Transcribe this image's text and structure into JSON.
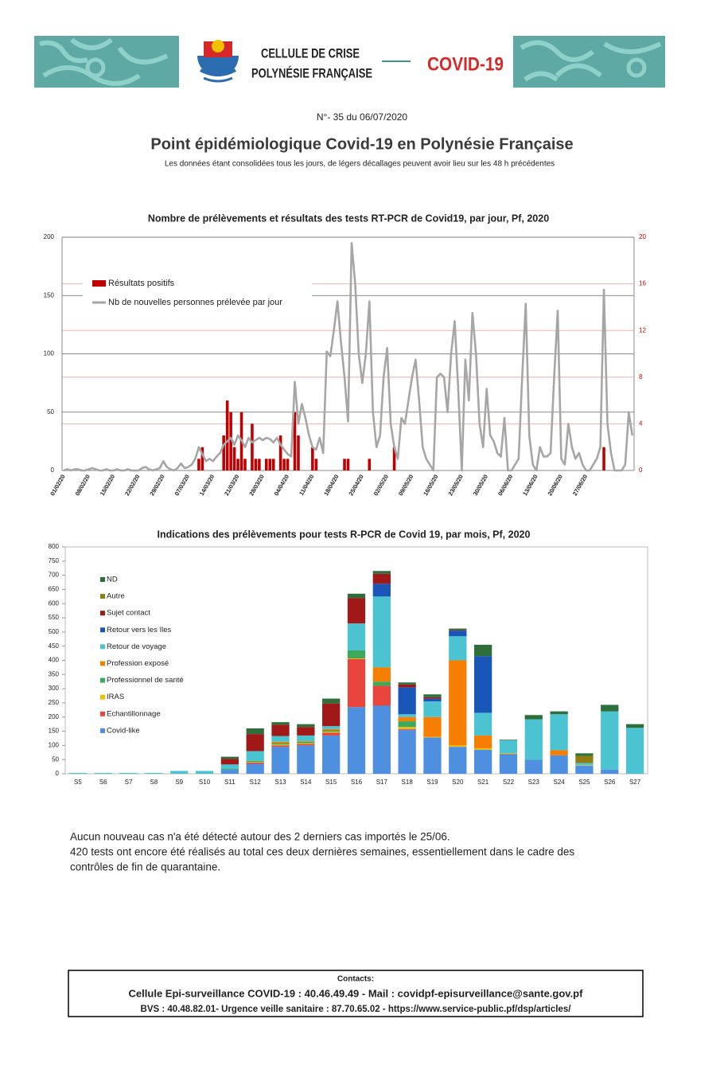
{
  "header": {
    "line1": "CELLULE DE CRISE",
    "line2": "POLYNÉSIE FRANÇAISE",
    "tag": "COVID-19"
  },
  "bulletin": "N°- 35 du 06/07/2020",
  "title": "Point épidémiologique Covid-19 en Polynésie Française",
  "subtitle": "Les données étant consolidées tous les jours, de légers décallages peuvent avoir lieu sur les 48 h précédentes",
  "chart_data": [
    {
      "type": "combo",
      "title": "Nombre de prélèvements et résultats des tests RT-PCR de Covid19, par jour, Pf, 2020",
      "categories": [
        "01/02/20",
        null,
        null,
        null,
        null,
        null,
        null,
        "08/02/20",
        null,
        null,
        null,
        null,
        null,
        null,
        "15/02/20",
        null,
        null,
        null,
        null,
        null,
        null,
        "22/02/20",
        null,
        null,
        null,
        null,
        null,
        null,
        "29/02/20",
        null,
        null,
        null,
        null,
        null,
        null,
        "07/03/20",
        null,
        null,
        null,
        null,
        null,
        null,
        "14/03/20",
        null,
        null,
        null,
        null,
        null,
        null,
        "21/03/20",
        null,
        null,
        null,
        null,
        null,
        null,
        "28/03/20",
        null,
        null,
        null,
        null,
        null,
        null,
        "04/04/20",
        null,
        null,
        null,
        null,
        null,
        null,
        "11/04/20",
        null,
        null,
        null,
        null,
        null,
        null,
        "18/04/20",
        null,
        null,
        null,
        null,
        null,
        null,
        "25/04/20",
        null,
        null,
        null,
        null,
        null,
        null,
        "02/05/20",
        null,
        null,
        null,
        null,
        null,
        null,
        "09/05/20",
        null,
        null,
        null,
        null,
        null,
        null,
        "16/05/20",
        null,
        null,
        null,
        null,
        null,
        null,
        "23/05/20",
        null,
        null,
        null,
        null,
        null,
        null,
        "30/05/20",
        null,
        null,
        null,
        null,
        null,
        null,
        "06/06/20",
        null,
        null,
        null,
        null,
        null,
        null,
        "13/06/20",
        null,
        null,
        null,
        null,
        null,
        null,
        "20/06/20",
        null,
        null,
        null,
        null,
        null,
        null,
        "27/06/20",
        null,
        null,
        null,
        null,
        null,
        null,
        null,
        null,
        null,
        null,
        null,
        null,
        null
      ],
      "series": [
        {
          "name": "Résultats positifs",
          "type": "bar",
          "axis": "y2",
          "color": "#c00000",
          "values": [
            0,
            0,
            0,
            0,
            0,
            0,
            0,
            0,
            0,
            0,
            0,
            0,
            0,
            0,
            0,
            0,
            0,
            0,
            0,
            0,
            0,
            0,
            0,
            0,
            0,
            0,
            0,
            0,
            0,
            0,
            0,
            0,
            0,
            0,
            0,
            0,
            0,
            0,
            1,
            2,
            0,
            0,
            0,
            0,
            0,
            3,
            6,
            5,
            2,
            1,
            5,
            1,
            0,
            4,
            1,
            1,
            0,
            1,
            1,
            1,
            0,
            3,
            1,
            1,
            0,
            5,
            3,
            0,
            0,
            0,
            2,
            1,
            0,
            0,
            0,
            0,
            0,
            0,
            0,
            1,
            1,
            0,
            0,
            0,
            0,
            0,
            1,
            0,
            0,
            0,
            0,
            0,
            0,
            2,
            0,
            0,
            0,
            0,
            0,
            0,
            0,
            0,
            0,
            0,
            0,
            0,
            0,
            0,
            0,
            0,
            0,
            0,
            0,
            0,
            0,
            0,
            0,
            0,
            0,
            0,
            0,
            0,
            0,
            0,
            0,
            0,
            0,
            0,
            0,
            0,
            0,
            0,
            0,
            0,
            0,
            0,
            0,
            0,
            0,
            0,
            0,
            0,
            0,
            0,
            0,
            0,
            0,
            0,
            0,
            0,
            0,
            0,
            2,
            0,
            0,
            0,
            0,
            0,
            0,
            0,
            0
          ]
        },
        {
          "name": "Nb de nouvelles personnes prélevée par jour",
          "type": "line",
          "color": "#a6a6a6",
          "values": [
            0,
            1,
            0,
            1,
            1,
            0,
            0,
            1,
            2,
            1,
            0,
            0,
            1,
            0,
            0,
            1,
            0,
            0,
            1,
            0,
            0,
            0,
            2,
            3,
            1,
            0,
            1,
            2,
            8,
            3,
            1,
            0,
            2,
            6,
            2,
            3,
            5,
            10,
            20,
            14,
            8,
            10,
            8,
            12,
            15,
            22,
            25,
            28,
            22,
            30,
            26,
            20,
            28,
            24,
            26,
            28,
            26,
            28,
            27,
            24,
            28,
            22,
            18,
            14,
            12,
            76,
            40,
            57,
            45,
            30,
            20,
            18,
            28,
            15,
            102,
            98,
            120,
            145,
            110,
            80,
            42,
            195,
            160,
            100,
            75,
            100,
            145,
            50,
            20,
            30,
            80,
            105,
            40,
            20,
            10,
            45,
            40,
            60,
            80,
            95,
            60,
            20,
            10,
            5,
            0,
            80,
            83,
            80,
            50,
            100,
            128,
            70,
            0,
            95,
            60,
            135,
            100,
            40,
            20,
            70,
            30,
            25,
            15,
            12,
            45,
            0,
            0,
            5,
            10,
            80,
            143,
            30,
            5,
            0,
            20,
            12,
            12,
            15,
            80,
            137,
            10,
            5,
            40,
            20,
            10,
            15,
            5,
            0,
            0,
            5,
            10,
            20,
            155,
            40,
            15,
            0,
            0,
            0,
            5,
            50,
            30
          ]
        }
      ],
      "ylim": [
        0,
        200
      ],
      "yticks": [
        0,
        50,
        100,
        150,
        200
      ],
      "y2lim": [
        0,
        20
      ],
      "y2ticks": [
        0,
        4,
        8,
        12,
        16,
        20
      ],
      "grid": true,
      "legend": "top-left"
    },
    {
      "type": "stacked_bar",
      "title": "Indications des prélèvements pour tests R-PCR de Covid 19, par mois, Pf, 2020",
      "categories": [
        "S5",
        "S6",
        "S7",
        "S8",
        "S9",
        "S10",
        "S11",
        "S12",
        "S13",
        "S14",
        "S15",
        "S16",
        "S17",
        "S18",
        "S19",
        "S20",
        "S21",
        "S22",
        "S23",
        "S24",
        "S25",
        "S26",
        "S27"
      ],
      "series": [
        {
          "name": "Covid-like",
          "color": "#4e8fdf",
          "values": [
            0,
            0,
            0,
            0,
            0,
            0,
            15,
            35,
            95,
            100,
            135,
            235,
            240,
            155,
            128,
            95,
            85,
            70,
            50,
            65,
            28,
            15,
            0
          ]
        },
        {
          "name": "Echantillonnage",
          "color": "#e8453c",
          "values": [
            0,
            0,
            0,
            0,
            0,
            0,
            0,
            5,
            5,
            5,
            10,
            170,
            70,
            3,
            0,
            0,
            0,
            0,
            0,
            0,
            0,
            0,
            0
          ]
        },
        {
          "name": "IRAS",
          "color": "#f0c000",
          "values": [
            0,
            0,
            0,
            0,
            0,
            0,
            0,
            2,
            3,
            3,
            3,
            2,
            0,
            7,
            2,
            5,
            5,
            3,
            0,
            0,
            2,
            0,
            0
          ]
        },
        {
          "name": "Professionnel de santé",
          "color": "#3daa5b",
          "values": [
            0,
            0,
            0,
            0,
            0,
            0,
            3,
            3,
            5,
            5,
            5,
            28,
            15,
            20,
            0,
            0,
            0,
            0,
            0,
            0,
            0,
            0,
            0
          ]
        },
        {
          "name": "Profession exposé",
          "color": "#f77f00",
          "values": [
            0,
            0,
            0,
            0,
            0,
            0,
            0,
            0,
            5,
            2,
            5,
            0,
            50,
            15,
            70,
            300,
            45,
            0,
            0,
            18,
            0,
            0,
            0
          ]
        },
        {
          "name": "Retour de voyage",
          "color": "#4cc3d0",
          "values": [
            3,
            3,
            3,
            3,
            10,
            10,
            15,
            35,
            20,
            20,
            10,
            95,
            250,
            10,
            55,
            85,
            80,
            45,
            142,
            127,
            8,
            205,
            162
          ]
        },
        {
          "name": "Retour vers les îles",
          "color": "#1a56b8",
          "values": [
            0,
            0,
            0,
            0,
            0,
            0,
            0,
            0,
            0,
            0,
            0,
            0,
            45,
            95,
            10,
            20,
            200,
            0,
            0,
            0,
            0,
            0,
            0
          ]
        },
        {
          "name": "Sujet contact",
          "color": "#a01818",
          "values": [
            0,
            0,
            0,
            0,
            0,
            0,
            20,
            60,
            40,
            30,
            80,
            90,
            35,
            10,
            5,
            2,
            0,
            0,
            0,
            0,
            0,
            0,
            0
          ]
        },
        {
          "name": "Autre",
          "color": "#8f7d10",
          "values": [
            0,
            0,
            0,
            0,
            0,
            0,
            0,
            0,
            0,
            0,
            0,
            0,
            0,
            0,
            0,
            0,
            0,
            0,
            0,
            0,
            25,
            0,
            0
          ]
        },
        {
          "name": "ND",
          "color": "#2d6e3a",
          "values": [
            0,
            0,
            0,
            0,
            0,
            0,
            7,
            20,
            9,
            10,
            17,
            15,
            10,
            7,
            10,
            5,
            40,
            2,
            15,
            10,
            9,
            23,
            13
          ]
        }
      ],
      "ylim": [
        0,
        800
      ],
      "yticks": [
        0,
        50,
        100,
        150,
        200,
        250,
        300,
        350,
        400,
        450,
        500,
        550,
        600,
        650,
        700,
        750,
        800
      ],
      "legend": "top-left"
    }
  ],
  "body": [
    "Aucun nouveau cas n'a été détecté autour des 2 derniers cas importés le 25/06.",
    "420 tests ont encore été réalisés au total ces deux dernières semaines, essentiellement dans le cadre des",
    "contrôles de fin de quarantaine."
  ],
  "contacts": {
    "heading": "Contacts:",
    "line1": "Cellule Epi-surveillance COVID-19 : 40.46.49.49 - Mail : covidpf-episurveillance@sante.gov.pf",
    "line2": "BVS : 40.48.82.01- Urgence veille sanitaire : 87.70.65.02 -  https://www.service-public.pf/dsp/articles/"
  }
}
